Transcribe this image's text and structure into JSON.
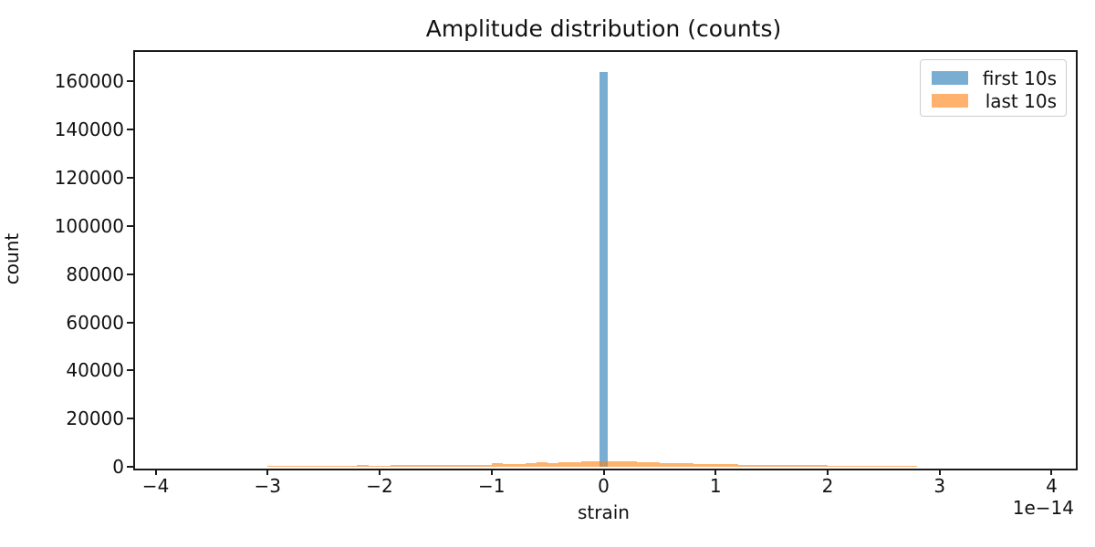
{
  "chart_data": {
    "type": "bar",
    "subtype": "histogram",
    "title": "Amplitude distribution (counts)",
    "xlabel": "strain",
    "ylabel": "count",
    "x_offset_label": "1e−14",
    "x_unit_scale": 1e-14,
    "xlim": [
      -4.2,
      4.2
    ],
    "ylim": [
      0,
      173000
    ],
    "grid": false,
    "x_ticks": [
      -4,
      -3,
      -2,
      -1,
      0,
      1,
      2,
      3,
      4
    ],
    "x_tick_labels": [
      "−4",
      "−3",
      "−2",
      "−1",
      "0",
      "1",
      "2",
      "3",
      "4"
    ],
    "y_ticks": [
      0,
      20000,
      40000,
      60000,
      80000,
      100000,
      120000,
      140000,
      160000
    ],
    "y_tick_labels": [
      "0",
      "20000",
      "40000",
      "60000",
      "80000",
      "100000",
      "120000",
      "140000",
      "160000"
    ],
    "legend": {
      "position": "upper right",
      "entries": [
        {
          "label": "first 10s",
          "color": "rgba(31,119,180,0.6)",
          "solid_color": "#7aabd4"
        },
        {
          "label": "last 10s",
          "color": "rgba(255,127,14,0.6)",
          "solid_color": "#fbab64"
        }
      ]
    },
    "series": [
      {
        "name": "first 10s",
        "color": "rgba(31,119,180,0.6)",
        "bin_start": -0.035,
        "bin_width": 0.07,
        "counts": [
          163840
        ]
      },
      {
        "name": "last 10s",
        "color": "rgba(255,127,14,0.6)",
        "bin_start": -3.1,
        "bin_width": 0.1,
        "counts": [
          150,
          200,
          250,
          220,
          280,
          300,
          350,
          330,
          400,
          700,
          500,
          550,
          600,
          580,
          650,
          700,
          750,
          800,
          850,
          900,
          950,
          1400,
          1100,
          1200,
          1500,
          1800,
          1600,
          2000,
          1900,
          2200,
          2400,
          2300,
          2100,
          2200,
          1900,
          2000,
          1700,
          1500,
          1400,
          1300,
          1200,
          1100,
          1000,
          950,
          900,
          850,
          800,
          750,
          800,
          650,
          600,
          550,
          450,
          400,
          350,
          300,
          280,
          250,
          220,
          180,
          150,
          130
        ]
      }
    ]
  }
}
